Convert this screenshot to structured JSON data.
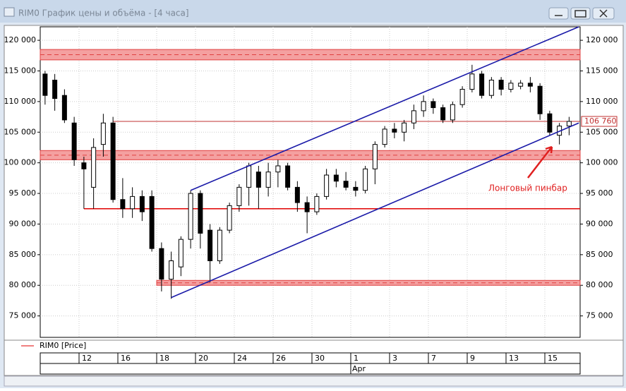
{
  "window": {
    "title": "RIM0 График цены и объёма - [4 часа]"
  },
  "chart_data": {
    "type": "candlestick",
    "legend": "RIM0 [Price]",
    "categories": [
      null,
      null,
      null,
      null,
      "12",
      null,
      null,
      null,
      "16",
      null,
      null,
      null,
      "18",
      null,
      null,
      null,
      "20",
      null,
      null,
      null,
      "24",
      null,
      null,
      null,
      "26",
      null,
      null,
      null,
      "30",
      null,
      null,
      null,
      "1",
      null,
      null,
      null,
      "3",
      null,
      null,
      null,
      "7",
      null,
      null,
      null,
      "9",
      null,
      null,
      null,
      "13",
      null,
      null,
      null,
      "15",
      null,
      null
    ],
    "months": [
      null,
      null,
      null,
      null,
      null,
      null,
      null,
      null,
      null,
      null,
      null,
      null,
      null,
      null,
      null,
      null,
      null,
      null,
      null,
      null,
      null,
      null,
      null,
      null,
      null,
      null,
      null,
      null,
      null,
      null,
      null,
      null,
      "Apr",
      null,
      null,
      null,
      null,
      null,
      null,
      null,
      null,
      null,
      null,
      null,
      null,
      null,
      null,
      null,
      null,
      null,
      null,
      null,
      null,
      null,
      null
    ],
    "open": [
      114500,
      113500,
      111000,
      106500,
      100000,
      96000,
      103000,
      106500,
      94000,
      92500,
      94500,
      94500,
      86000,
      81000,
      83000,
      87500,
      95000,
      89000,
      84000,
      89000,
      93000,
      96000,
      98500,
      96000,
      98500,
      99500,
      96000,
      93500,
      92000,
      94500,
      98000,
      97000,
      96000,
      95500,
      99000,
      103000,
      105500,
      105000,
      106500,
      108500,
      110000,
      109000,
      107000,
      109500,
      112000,
      114500,
      111000,
      113500,
      112000,
      112500,
      113000,
      112500,
      108000,
      104500,
      106000
    ],
    "high": [
      115000,
      114500,
      112000,
      107500,
      101000,
      104000,
      108000,
      107500,
      97500,
      96000,
      95500,
      95500,
      87000,
      85500,
      88000,
      95500,
      95500,
      90000,
      89500,
      93500,
      96500,
      100000,
      99500,
      100000,
      100500,
      100000,
      97000,
      94500,
      95000,
      99000,
      99000,
      98500,
      97000,
      99500,
      103500,
      106000,
      106500,
      107000,
      109500,
      111000,
      110500,
      109500,
      110000,
      112500,
      116000,
      115000,
      114000,
      114000,
      113500,
      113500,
      114000,
      113000,
      108500,
      106500,
      107500
    ],
    "low": [
      109500,
      108500,
      106500,
      99500,
      92500,
      92500,
      101000,
      93500,
      91000,
      91000,
      90500,
      85500,
      79000,
      77800,
      81500,
      86000,
      86000,
      80500,
      83500,
      88500,
      92000,
      93000,
      92500,
      94500,
      96000,
      95500,
      92000,
      88500,
      91500,
      94000,
      96000,
      95500,
      94500,
      95000,
      96500,
      102500,
      104000,
      103500,
      105500,
      107500,
      108000,
      106500,
      106500,
      109000,
      111500,
      110500,
      110500,
      111000,
      111500,
      112000,
      111500,
      107000,
      104500,
      103000,
      104500
    ],
    "close": [
      111000,
      110500,
      107000,
      100500,
      99000,
      102500,
      106500,
      94000,
      92500,
      94500,
      92000,
      86000,
      81000,
      84000,
      87500,
      95000,
      88500,
      84000,
      89000,
      93000,
      96000,
      99500,
      96000,
      98500,
      99500,
      96000,
      93500,
      92000,
      94500,
      98000,
      97000,
      96000,
      95500,
      99000,
      103000,
      105500,
      105000,
      106500,
      108500,
      110000,
      109000,
      107000,
      109500,
      112000,
      114500,
      111000,
      113500,
      112000,
      113000,
      113000,
      112500,
      108000,
      105000,
      106000,
      106760
    ],
    "ylim": [
      71500,
      122200
    ],
    "yticks": [
      {
        "value": 75000,
        "label": "75 000"
      },
      {
        "value": 80000,
        "label": "80 000"
      },
      {
        "value": 85000,
        "label": "85 000"
      },
      {
        "value": 90000,
        "label": "90 000"
      },
      {
        "value": 95000,
        "label": "95 000"
      },
      {
        "value": 100000,
        "label": "100 000"
      },
      {
        "value": 105000,
        "label": "105 000"
      },
      {
        "value": 110000,
        "label": "110 000"
      },
      {
        "value": 115000,
        "label": "115 000"
      },
      {
        "value": 120000,
        "label": "120 000"
      }
    ],
    "grid": true,
    "zones": [
      {
        "from": 116800,
        "to": 118500,
        "start": 0
      },
      {
        "from": 100500,
        "to": 102000,
        "start": 0
      },
      {
        "from": 80000,
        "to": 80800,
        "start": 12
      }
    ],
    "levels": [
      {
        "value": 92500,
        "start": 4,
        "color": "#e00000"
      },
      {
        "value": 106760,
        "start": 7,
        "color": "#c03030"
      }
    ],
    "channels": [
      {
        "from": [
          13,
          78000
        ],
        "to": [
          55,
          106500
        ]
      },
      {
        "from": [
          15,
          95500
        ],
        "to": [
          55,
          122200
        ]
      }
    ],
    "last_price": {
      "value": 106760,
      "label": "106 760"
    },
    "annotation": {
      "text": "Лонговый пинбар",
      "color": "#e02020"
    }
  }
}
